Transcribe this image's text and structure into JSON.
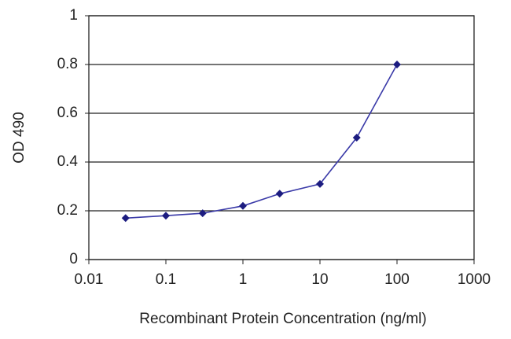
{
  "chart_data": {
    "type": "line",
    "x_label": "Recombinant Protein Concentration (ng/ml)",
    "y_label": "OD 490",
    "x": [
      0.03,
      0.1,
      0.3,
      1,
      3,
      10,
      30,
      100
    ],
    "values": [
      0.17,
      0.18,
      0.19,
      0.22,
      0.27,
      0.31,
      0.5,
      0.8
    ],
    "color": "#3a3aa8",
    "marker_color": "#1c1c80",
    "xscale": "log",
    "xlim": [
      0.01,
      1000
    ],
    "xticks": [
      0.01,
      0.1,
      1,
      10,
      100,
      1000
    ],
    "ylim": [
      0,
      1
    ],
    "yticks": [
      0,
      0.2,
      0.4,
      0.6,
      0.8,
      1
    ],
    "grid": true
  }
}
